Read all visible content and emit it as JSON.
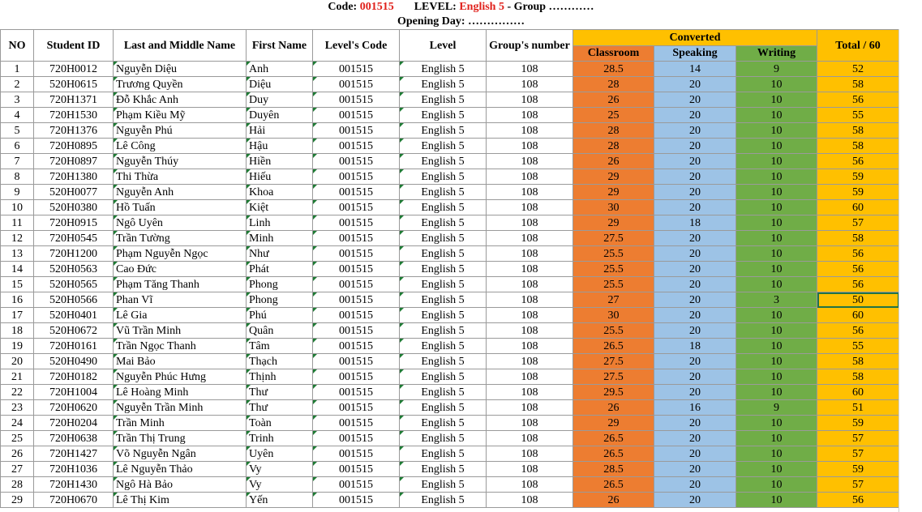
{
  "header": {
    "code_label": "Code:",
    "code_value": "001515",
    "level_label": "LEVEL:",
    "level_value": "English 5",
    "group_label": "- Group …………",
    "opening_label": "Opening Day: ……………"
  },
  "columns": {
    "no": "NO",
    "student_id": "Student ID",
    "last_name": "Last and Middle Name",
    "first_name": "First Name",
    "level_code": "Level's Code",
    "level": "Level",
    "group_number": "Group's number",
    "converted": "Converted",
    "classroom": "Classroom",
    "speaking": "Speaking",
    "writing": "Writing",
    "total": "Total / 60"
  },
  "colors": {
    "classroom": "#ed7d31",
    "speaking": "#9dc3e6",
    "writing": "#70ad47",
    "total": "#ffc000",
    "header_red": "#e0201b"
  },
  "rows": [
    {
      "no": "1",
      "id": "720H0012",
      "last": "Nguyễn Diệu",
      "first": "Anh",
      "code": "001515",
      "level": "English 5",
      "group": "108",
      "cls": "28.5",
      "spk": "14",
      "wrt": "9",
      "tot": "52"
    },
    {
      "no": "2",
      "id": "520H0615",
      "last": "Trương Quyền",
      "first": "Diệu",
      "code": "001515",
      "level": "English 5",
      "group": "108",
      "cls": "28",
      "spk": "20",
      "wrt": "10",
      "tot": "58"
    },
    {
      "no": "3",
      "id": "720H1371",
      "last": "Đỗ Khắc Anh",
      "first": "Duy",
      "code": "001515",
      "level": "English 5",
      "group": "108",
      "cls": "26",
      "spk": "20",
      "wrt": "10",
      "tot": "56"
    },
    {
      "no": "4",
      "id": "720H1530",
      "last": "Phạm Kiều Mỹ",
      "first": "Duyên",
      "code": "001515",
      "level": "English 5",
      "group": "108",
      "cls": "25",
      "spk": "20",
      "wrt": "10",
      "tot": "55"
    },
    {
      "no": "5",
      "id": "720H1376",
      "last": "Nguyễn Phú",
      "first": "Hải",
      "code": "001515",
      "level": "English 5",
      "group": "108",
      "cls": "28",
      "spk": "20",
      "wrt": "10",
      "tot": "58"
    },
    {
      "no": "6",
      "id": "720H0895",
      "last": "Lê Công",
      "first": "Hậu",
      "code": "001515",
      "level": "English 5",
      "group": "108",
      "cls": "28",
      "spk": "20",
      "wrt": "10",
      "tot": "58"
    },
    {
      "no": "7",
      "id": "720H0897",
      "last": "Nguyễn Thúy",
      "first": "Hiền",
      "code": "001515",
      "level": "English 5",
      "group": "108",
      "cls": "26",
      "spk": "20",
      "wrt": "10",
      "tot": "56"
    },
    {
      "no": "8",
      "id": "720H1380",
      "last": "Thi Thừa",
      "first": "Hiếu",
      "code": "001515",
      "level": "English 5",
      "group": "108",
      "cls": "29",
      "spk": "20",
      "wrt": "10",
      "tot": "59"
    },
    {
      "no": "9",
      "id": "520H0077",
      "last": "Nguyễn Anh",
      "first": "Khoa",
      "code": "001515",
      "level": "English 5",
      "group": "108",
      "cls": "29",
      "spk": "20",
      "wrt": "10",
      "tot": "59"
    },
    {
      "no": "10",
      "id": "520H0380",
      "last": "Hồ Tuấn",
      "first": "Kiệt",
      "code": "001515",
      "level": "English 5",
      "group": "108",
      "cls": "30",
      "spk": "20",
      "wrt": "10",
      "tot": "60"
    },
    {
      "no": "11",
      "id": "720H0915",
      "last": "Ngô Uyên",
      "first": "Linh",
      "code": "001515",
      "level": "English 5",
      "group": "108",
      "cls": "29",
      "spk": "18",
      "wrt": "10",
      "tot": "57"
    },
    {
      "no": "12",
      "id": "720H0545",
      "last": "Trần Tường",
      "first": "Minh",
      "code": "001515",
      "level": "English 5",
      "group": "108",
      "cls": "27.5",
      "spk": "20",
      "wrt": "10",
      "tot": "58"
    },
    {
      "no": "13",
      "id": "720H1200",
      "last": "Phạm Nguyễn Ngọc",
      "first": "Như",
      "code": "001515",
      "level": "English 5",
      "group": "108",
      "cls": "25.5",
      "spk": "20",
      "wrt": "10",
      "tot": "56"
    },
    {
      "no": "14",
      "id": "520H0563",
      "last": "Cao Đức",
      "first": "Phát",
      "code": "001515",
      "level": "English 5",
      "group": "108",
      "cls": "25.5",
      "spk": "20",
      "wrt": "10",
      "tot": "56"
    },
    {
      "no": "15",
      "id": "520H0565",
      "last": "Phạm Tăng Thanh",
      "first": "Phong",
      "code": "001515",
      "level": "English 5",
      "group": "108",
      "cls": "25.5",
      "spk": "20",
      "wrt": "10",
      "tot": "56"
    },
    {
      "no": "16",
      "id": "520H0566",
      "last": "Phan Vĩ",
      "first": "Phong",
      "code": "001515",
      "level": "English 5",
      "group": "108",
      "cls": "27",
      "spk": "20",
      "wrt": "3",
      "tot": "50"
    },
    {
      "no": "17",
      "id": "520H0401",
      "last": "Lê Gia",
      "first": "Phú",
      "code": "001515",
      "level": "English 5",
      "group": "108",
      "cls": "30",
      "spk": "20",
      "wrt": "10",
      "tot": "60"
    },
    {
      "no": "18",
      "id": "520H0672",
      "last": "Vũ Trần Minh",
      "first": "Quân",
      "code": "001515",
      "level": "English 5",
      "group": "108",
      "cls": "25.5",
      "spk": "20",
      "wrt": "10",
      "tot": "56"
    },
    {
      "no": "19",
      "id": "720H0161",
      "last": "Trần Ngọc Thanh",
      "first": "Tâm",
      "code": "001515",
      "level": "English 5",
      "group": "108",
      "cls": "26.5",
      "spk": "18",
      "wrt": "10",
      "tot": "55"
    },
    {
      "no": "20",
      "id": "520H0490",
      "last": "Mai Bảo",
      "first": "Thạch",
      "code": "001515",
      "level": "English 5",
      "group": "108",
      "cls": "27.5",
      "spk": "20",
      "wrt": "10",
      "tot": "58"
    },
    {
      "no": "21",
      "id": "720H0182",
      "last": "Nguyễn Phúc Hưng",
      "first": "Thịnh",
      "code": "001515",
      "level": "English 5",
      "group": "108",
      "cls": "27.5",
      "spk": "20",
      "wrt": "10",
      "tot": "58"
    },
    {
      "no": "22",
      "id": "720H1004",
      "last": "Lê Hoàng Minh",
      "first": "Thư",
      "code": "001515",
      "level": "English 5",
      "group": "108",
      "cls": "29.5",
      "spk": "20",
      "wrt": "10",
      "tot": "60"
    },
    {
      "no": "23",
      "id": "720H0620",
      "last": "Nguyễn Trần Minh",
      "first": "Thư",
      "code": "001515",
      "level": "English 5",
      "group": "108",
      "cls": "26",
      "spk": "16",
      "wrt": "9",
      "tot": "51"
    },
    {
      "no": "24",
      "id": "720H0204",
      "last": "Trần Minh",
      "first": "Toàn",
      "code": "001515",
      "level": "English 5",
      "group": "108",
      "cls": "29",
      "spk": "20",
      "wrt": "10",
      "tot": "59"
    },
    {
      "no": "25",
      "id": "720H0638",
      "last": "Trần Thị Trung",
      "first": "Trinh",
      "code": "001515",
      "level": "English 5",
      "group": "108",
      "cls": "26.5",
      "spk": "20",
      "wrt": "10",
      "tot": "57"
    },
    {
      "no": "26",
      "id": "720H1427",
      "last": "Võ Nguyễn Ngân",
      "first": "Uyên",
      "code": "001515",
      "level": "English 5",
      "group": "108",
      "cls": "26.5",
      "spk": "20",
      "wrt": "10",
      "tot": "57"
    },
    {
      "no": "27",
      "id": "720H1036",
      "last": "Lê Nguyễn Thảo",
      "first": "Vy",
      "code": "001515",
      "level": "English 5",
      "group": "108",
      "cls": "28.5",
      "spk": "20",
      "wrt": "10",
      "tot": "59"
    },
    {
      "no": "28",
      "id": "720H1430",
      "last": "Ngô Hà Bảo",
      "first": "Vy",
      "code": "001515",
      "level": "English 5",
      "group": "108",
      "cls": "26.5",
      "spk": "20",
      "wrt": "10",
      "tot": "57"
    },
    {
      "no": "29",
      "id": "720H0670",
      "last": "Lê Thị Kim",
      "first": "Yến",
      "code": "001515",
      "level": "English 5",
      "group": "108",
      "cls": "26",
      "spk": "20",
      "wrt": "10",
      "tot": "56"
    }
  ],
  "selected_row": 15
}
